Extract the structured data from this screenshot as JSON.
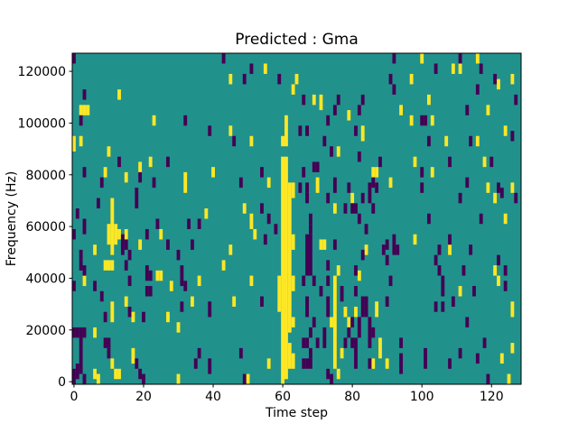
{
  "colors": {
    "background": "#ffffff",
    "teal": "#21918c",
    "yellow": "#fde725",
    "purple": "#440154",
    "axis": "#000000"
  },
  "chart_data": {
    "type": "heatmap",
    "title": "Predicted : Gma",
    "xlabel": "Time step",
    "ylabel": "Frequency (Hz)",
    "legend": "none",
    "grid": {
      "cols": 129,
      "rows": 64
    },
    "hz_per_row": 2000,
    "x_range": [
      0,
      128
    ],
    "y_range_hz": [
      0,
      128000
    ],
    "x_ticks": [
      0,
      20,
      40,
      60,
      80,
      100,
      120
    ],
    "y_ticks": [
      0,
      20000,
      40000,
      60000,
      80000,
      100000,
      120000
    ],
    "value_colors": {
      "background_value": "teal",
      "class_1": "yellow",
      "class_2": "purple"
    },
    "yellow_runs": [
      [
        0,
        45,
        47
      ],
      [
        2,
        46,
        47
      ],
      [
        2,
        52,
        53
      ],
      [
        3,
        52,
        53
      ],
      [
        4,
        52,
        53
      ],
      [
        3,
        19,
        20
      ],
      [
        6,
        25,
        26
      ],
      [
        6,
        9,
        10
      ],
      [
        6,
        1,
        2
      ],
      [
        7,
        0,
        1
      ],
      [
        9,
        40,
        41
      ],
      [
        9,
        22,
        23
      ],
      [
        10,
        44,
        45
      ],
      [
        10,
        27,
        30
      ],
      [
        10,
        22,
        23
      ],
      [
        11,
        25,
        35
      ],
      [
        11,
        22,
        23
      ],
      [
        11,
        12,
        15
      ],
      [
        11,
        3,
        4
      ],
      [
        12,
        27,
        30
      ],
      [
        12,
        1,
        2
      ],
      [
        13,
        55,
        56
      ],
      [
        13,
        28,
        29
      ],
      [
        13,
        1,
        2
      ],
      [
        15,
        39,
        40
      ],
      [
        15,
        28,
        29
      ],
      [
        15,
        15,
        16
      ],
      [
        17,
        12,
        13
      ],
      [
        17,
        4,
        6
      ],
      [
        19,
        41,
        42
      ],
      [
        19,
        26,
        27
      ],
      [
        22,
        42,
        43
      ],
      [
        23,
        50,
        51
      ],
      [
        24,
        20,
        21
      ],
      [
        25,
        20,
        21
      ],
      [
        25,
        28,
        29
      ],
      [
        27,
        12,
        13
      ],
      [
        28,
        18,
        19
      ],
      [
        30,
        10,
        11
      ],
      [
        30,
        0,
        1
      ],
      [
        32,
        37,
        40
      ],
      [
        34,
        15,
        16
      ],
      [
        36,
        19,
        20
      ],
      [
        38,
        32,
        33
      ],
      [
        40,
        40,
        41
      ],
      [
        43,
        22,
        23
      ],
      [
        45,
        58,
        59
      ],
      [
        45,
        48,
        49
      ],
      [
        45,
        25,
        26
      ],
      [
        46,
        15,
        16
      ],
      [
        49,
        33,
        34
      ],
      [
        50,
        0,
        1
      ],
      [
        51,
        46,
        47
      ],
      [
        51,
        30,
        32
      ],
      [
        51,
        19,
        20
      ],
      [
        52,
        28,
        29
      ],
      [
        55,
        60,
        61
      ],
      [
        56,
        38,
        39
      ],
      [
        56,
        3,
        4
      ],
      [
        59,
        14,
        20
      ],
      [
        60,
        0,
        43
      ],
      [
        60,
        46,
        47
      ],
      [
        61,
        1,
        43
      ],
      [
        61,
        46,
        51
      ],
      [
        62,
        3,
        7
      ],
      [
        62,
        10,
        38
      ],
      [
        63,
        3,
        5
      ],
      [
        63,
        11,
        12
      ],
      [
        63,
        18,
        20
      ],
      [
        63,
        26,
        28
      ],
      [
        63,
        36,
        38
      ],
      [
        63,
        56,
        57
      ],
      [
        64,
        58,
        59
      ],
      [
        69,
        54,
        55
      ],
      [
        70,
        37,
        39
      ],
      [
        71,
        53,
        55
      ],
      [
        71,
        26,
        27
      ],
      [
        72,
        26,
        27
      ],
      [
        74,
        11,
        12
      ],
      [
        75,
        33,
        34
      ],
      [
        75,
        3,
        20
      ],
      [
        76,
        44,
        45
      ],
      [
        76,
        21,
        22
      ],
      [
        76,
        1,
        2
      ],
      [
        77,
        5,
        6
      ],
      [
        78,
        13,
        14
      ],
      [
        79,
        51,
        52
      ],
      [
        79,
        11,
        12
      ],
      [
        80,
        35,
        36
      ],
      [
        81,
        13,
        14
      ],
      [
        82,
        20,
        21
      ],
      [
        83,
        47,
        49
      ],
      [
        84,
        25,
        26
      ],
      [
        86,
        40,
        41
      ],
      [
        86,
        3,
        4
      ],
      [
        87,
        40,
        41
      ],
      [
        87,
        13,
        15
      ],
      [
        88,
        5,
        8
      ],
      [
        90,
        3,
        4
      ],
      [
        91,
        38,
        39
      ],
      [
        94,
        52,
        53
      ],
      [
        97,
        58,
        59
      ],
      [
        97,
        50,
        51
      ],
      [
        98,
        42,
        43
      ],
      [
        98,
        27,
        28
      ],
      [
        100,
        62,
        63
      ],
      [
        102,
        54,
        55
      ],
      [
        103,
        50,
        51
      ],
      [
        103,
        40,
        41
      ],
      [
        107,
        46,
        47
      ],
      [
        108,
        25,
        26
      ],
      [
        109,
        60,
        61
      ],
      [
        111,
        60,
        61
      ],
      [
        111,
        17,
        18
      ],
      [
        116,
        62,
        63
      ],
      [
        116,
        46,
        47
      ],
      [
        118,
        42,
        43
      ],
      [
        119,
        52,
        53
      ],
      [
        119,
        37,
        38
      ],
      [
        121,
        35,
        36
      ],
      [
        121,
        21,
        22
      ],
      [
        122,
        57,
        58
      ],
      [
        122,
        19,
        20
      ],
      [
        123,
        4,
        5
      ],
      [
        124,
        48,
        49
      ],
      [
        124,
        31,
        32
      ],
      [
        125,
        0,
        1
      ],
      [
        126,
        58,
        59
      ],
      [
        126,
        37,
        38
      ],
      [
        126,
        13,
        15
      ],
      [
        126,
        6,
        7
      ]
    ],
    "purple_runs": [
      [
        0,
        62,
        63
      ],
      [
        0,
        28,
        29
      ],
      [
        0,
        18,
        19
      ],
      [
        0,
        9,
        10
      ],
      [
        0,
        0,
        2
      ],
      [
        1,
        32,
        33
      ],
      [
        1,
        9,
        10
      ],
      [
        1,
        1,
        3
      ],
      [
        2,
        50,
        51
      ],
      [
        2,
        24,
        25
      ],
      [
        2,
        22,
        23
      ],
      [
        2,
        2,
        10
      ],
      [
        3,
        55,
        56
      ],
      [
        3,
        40,
        41
      ],
      [
        3,
        29,
        31
      ],
      [
        3,
        21,
        22
      ],
      [
        3,
        9,
        10
      ],
      [
        3,
        0,
        1
      ],
      [
        6,
        18,
        19
      ],
      [
        7,
        34,
        35
      ],
      [
        8,
        38,
        39
      ],
      [
        8,
        16,
        17
      ],
      [
        9,
        12,
        13
      ],
      [
        9,
        7,
        8
      ],
      [
        10,
        7,
        8
      ],
      [
        10,
        5,
        6
      ],
      [
        13,
        42,
        43
      ],
      [
        14,
        25,
        28
      ],
      [
        15,
        26,
        27
      ],
      [
        15,
        22,
        23
      ],
      [
        16,
        24,
        25
      ],
      [
        16,
        19,
        20
      ],
      [
        16,
        13,
        14
      ],
      [
        18,
        34,
        37
      ],
      [
        18,
        3,
        4
      ],
      [
        19,
        39,
        40
      ],
      [
        19,
        1,
        2
      ],
      [
        20,
        12,
        13
      ],
      [
        20,
        0,
        1
      ],
      [
        21,
        28,
        29
      ],
      [
        21,
        20,
        22
      ],
      [
        21,
        17,
        18
      ],
      [
        22,
        20,
        21
      ],
      [
        22,
        17,
        18
      ],
      [
        23,
        38,
        39
      ],
      [
        24,
        30,
        31
      ],
      [
        27,
        42,
        43
      ],
      [
        27,
        26,
        27
      ],
      [
        30,
        24,
        25
      ],
      [
        31,
        19,
        22
      ],
      [
        31,
        14,
        15
      ],
      [
        32,
        50,
        51
      ],
      [
        32,
        18,
        19
      ],
      [
        33,
        30,
        31
      ],
      [
        34,
        26,
        27
      ],
      [
        35,
        3,
        4
      ],
      [
        36,
        30,
        31
      ],
      [
        36,
        5,
        6
      ],
      [
        39,
        48,
        49
      ],
      [
        39,
        13,
        15
      ],
      [
        39,
        2,
        4
      ],
      [
        43,
        62,
        63
      ],
      [
        46,
        46,
        47
      ],
      [
        48,
        38,
        39
      ],
      [
        48,
        5,
        6
      ],
      [
        49,
        58,
        59
      ],
      [
        49,
        0,
        1
      ],
      [
        51,
        60,
        61
      ],
      [
        54,
        40,
        41
      ],
      [
        54,
        33,
        34
      ],
      [
        54,
        15,
        16
      ],
      [
        55,
        27,
        28
      ],
      [
        56,
        31,
        32
      ],
      [
        58,
        29,
        30
      ],
      [
        59,
        58,
        59
      ],
      [
        65,
        48,
        49
      ],
      [
        65,
        37,
        38
      ],
      [
        66,
        54,
        55
      ],
      [
        66,
        40,
        41
      ],
      [
        66,
        19,
        20
      ],
      [
        66,
        7,
        8
      ],
      [
        66,
        3,
        4
      ],
      [
        67,
        48,
        49
      ],
      [
        67,
        37,
        38
      ],
      [
        67,
        35,
        36
      ],
      [
        67,
        21,
        28
      ],
      [
        67,
        13,
        16
      ],
      [
        67,
        7,
        8
      ],
      [
        67,
        3,
        4
      ],
      [
        68,
        31,
        32
      ],
      [
        68,
        29,
        30
      ],
      [
        68,
        21,
        28
      ],
      [
        68,
        9,
        10
      ],
      [
        68,
        5,
        6
      ],
      [
        68,
        3,
        4
      ],
      [
        69,
        41,
        42
      ],
      [
        69,
        19,
        20
      ],
      [
        69,
        11,
        12
      ],
      [
        70,
        41,
        42
      ],
      [
        70,
        7,
        8
      ],
      [
        71,
        17,
        18
      ],
      [
        72,
        46,
        47
      ],
      [
        72,
        7,
        10
      ],
      [
        73,
        50,
        51
      ],
      [
        73,
        35,
        36
      ],
      [
        73,
        22,
        23
      ],
      [
        73,
        19,
        20
      ],
      [
        73,
        13,
        16
      ],
      [
        73,
        1,
        2
      ],
      [
        74,
        44,
        45
      ],
      [
        74,
        0,
        1
      ],
      [
        75,
        52,
        53
      ],
      [
        75,
        37,
        39
      ],
      [
        75,
        26,
        27
      ],
      [
        76,
        54,
        55
      ],
      [
        77,
        16,
        18
      ],
      [
        78,
        33,
        34
      ],
      [
        78,
        7,
        8
      ],
      [
        79,
        37,
        38
      ],
      [
        79,
        9,
        10
      ],
      [
        80,
        33,
        34
      ],
      [
        80,
        11,
        12
      ],
      [
        80,
        7,
        8
      ],
      [
        81,
        48,
        49
      ],
      [
        81,
        33,
        34
      ],
      [
        81,
        21,
        22
      ],
      [
        81,
        17,
        18
      ],
      [
        81,
        7,
        8
      ],
      [
        81,
        3,
        6
      ],
      [
        82,
        52,
        53
      ],
      [
        82,
        43,
        44
      ],
      [
        82,
        31,
        32
      ],
      [
        82,
        9,
        12
      ],
      [
        83,
        54,
        55
      ],
      [
        83,
        35,
        36
      ],
      [
        83,
        24,
        25
      ],
      [
        83,
        13,
        16
      ],
      [
        84,
        29,
        30
      ],
      [
        84,
        13,
        16
      ],
      [
        85,
        35,
        38
      ],
      [
        85,
        7,
        12
      ],
      [
        85,
        3,
        4
      ],
      [
        86,
        38,
        39
      ],
      [
        86,
        33,
        34
      ],
      [
        86,
        9,
        10
      ],
      [
        87,
        37,
        38
      ],
      [
        88,
        42,
        43
      ],
      [
        89,
        25,
        26
      ],
      [
        90,
        26,
        27
      ],
      [
        90,
        23,
        24
      ],
      [
        90,
        15,
        16
      ],
      [
        91,
        58,
        59
      ],
      [
        91,
        19,
        20
      ],
      [
        92,
        62,
        63
      ],
      [
        92,
        56,
        57
      ],
      [
        92,
        25,
        28
      ],
      [
        93,
        25,
        26
      ],
      [
        94,
        7,
        8
      ],
      [
        94,
        2,
        5
      ],
      [
        100,
        50,
        51
      ],
      [
        100,
        40,
        41
      ],
      [
        100,
        37,
        38
      ],
      [
        101,
        50,
        51
      ],
      [
        101,
        3,
        6
      ],
      [
        102,
        46,
        47
      ],
      [
        102,
        31,
        32
      ],
      [
        104,
        60,
        61
      ],
      [
        104,
        23,
        24
      ],
      [
        104,
        14,
        15
      ],
      [
        105,
        25,
        26
      ],
      [
        105,
        21,
        22
      ],
      [
        106,
        17,
        20
      ],
      [
        106,
        14,
        15
      ],
      [
        108,
        42,
        43
      ],
      [
        108,
        27,
        28
      ],
      [
        108,
        3,
        4
      ],
      [
        109,
        15,
        16
      ],
      [
        111,
        62,
        63
      ],
      [
        111,
        35,
        36
      ],
      [
        111,
        5,
        6
      ],
      [
        112,
        21,
        22
      ],
      [
        113,
        52,
        53
      ],
      [
        113,
        38,
        39
      ],
      [
        113,
        11,
        12
      ],
      [
        114,
        46,
        47
      ],
      [
        114,
        25,
        26
      ],
      [
        115,
        17,
        18
      ],
      [
        116,
        56,
        57
      ],
      [
        116,
        4,
        5
      ],
      [
        117,
        60,
        61
      ],
      [
        117,
        31,
        32
      ],
      [
        118,
        7,
        8
      ],
      [
        119,
        0,
        1
      ],
      [
        120,
        42,
        43
      ],
      [
        121,
        58,
        59
      ],
      [
        122,
        37,
        38
      ],
      [
        122,
        23,
        24
      ],
      [
        123,
        36,
        37
      ],
      [
        124,
        21,
        22
      ],
      [
        124,
        18,
        19
      ],
      [
        126,
        47,
        48
      ],
      [
        127,
        54,
        55
      ],
      [
        127,
        35,
        36
      ]
    ]
  }
}
